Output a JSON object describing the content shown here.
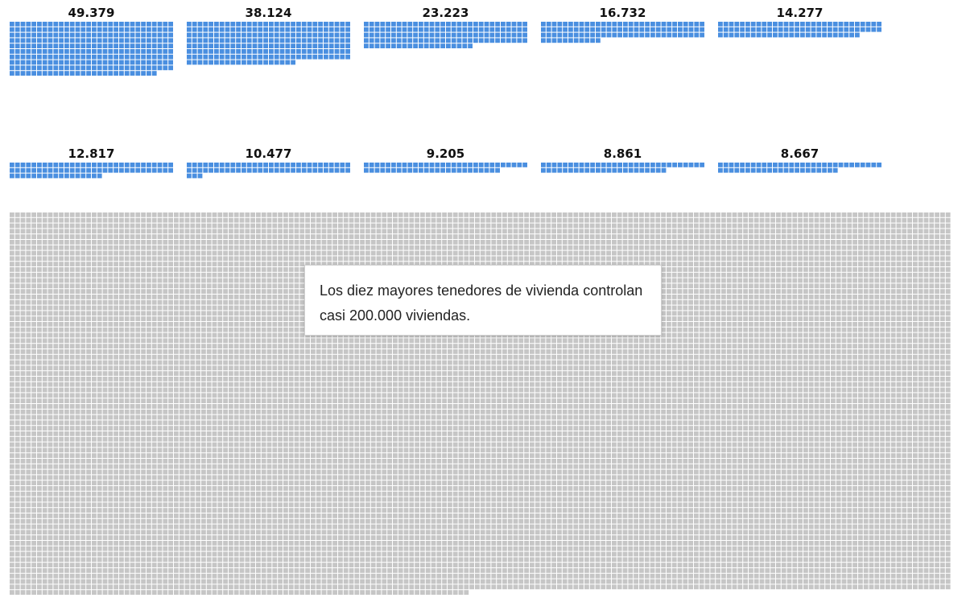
{
  "chart_data": {
    "type": "waffle",
    "unit_description": "each square represents a group of dwellings",
    "holders": [
      {
        "label": "49.379",
        "value": 49379
      },
      {
        "label": "38.124",
        "value": 38124
      },
      {
        "label": "23.223",
        "value": 23223
      },
      {
        "label": "16.732",
        "value": 16732
      },
      {
        "label": "14.277",
        "value": 14277
      },
      {
        "label": "12.817",
        "value": 12817
      },
      {
        "label": "10.477",
        "value": 10477
      },
      {
        "label": "9.205",
        "value": 9205
      },
      {
        "label": "8.861",
        "value": 8861
      },
      {
        "label": "8.667",
        "value": 8667
      }
    ],
    "colors": {
      "highlight": "#4a8fe0",
      "background": "#c6c6c6"
    },
    "callout": "Los diez mayores tenedores de vivienda controlan casi 200.000 viviendas."
  }
}
